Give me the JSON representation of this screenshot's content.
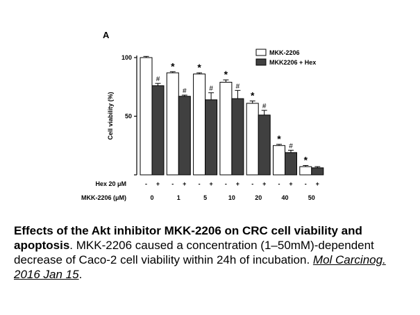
{
  "chart_data": {
    "type": "bar",
    "panel_label": "A",
    "ylabel": "Cell viability (%)",
    "ylim": [
      0,
      100
    ],
    "yticks": [
      0,
      50,
      100
    ],
    "ytick_labels": [
      "",
      "50",
      "100"
    ],
    "categories": [
      "0",
      "1",
      "5",
      "10",
      "20",
      "40",
      "50"
    ],
    "series": [
      {
        "name": "MKK-2206",
        "color": "#ffffff",
        "values": [
          100,
          87,
          86,
          79,
          61,
          25,
          7
        ],
        "errors": [
          1,
          1,
          1,
          2,
          2,
          1,
          1
        ],
        "marks": [
          "",
          "*",
          "*",
          "*",
          "*",
          "*",
          "*"
        ]
      },
      {
        "name": "MKK2206 + Hex",
        "color": "#404040",
        "values": [
          76,
          67,
          64,
          65,
          51,
          19,
          6
        ],
        "errors": [
          2,
          1,
          6,
          7,
          4,
          2,
          1
        ],
        "marks": [
          "#",
          "#",
          "#",
          "#",
          "#",
          "#",
          ""
        ]
      }
    ],
    "row_labels": {
      "hex": "Hex 20 μM",
      "mkk": "MKK-2206 (μM)"
    },
    "hex_signs": [
      "-",
      "+"
    ]
  },
  "caption": {
    "title": "Effects of the Akt inhibitor MKK-2206 on CRC cell viability and apoptosis",
    "body": ". MKK-2206 caused a concentration (1–50mM)-dependent decrease of Caco-2 cell viability within 24h of incubation. ",
    "citation": "Mol Carcinog. 2016 Jan 15",
    "end": "."
  }
}
